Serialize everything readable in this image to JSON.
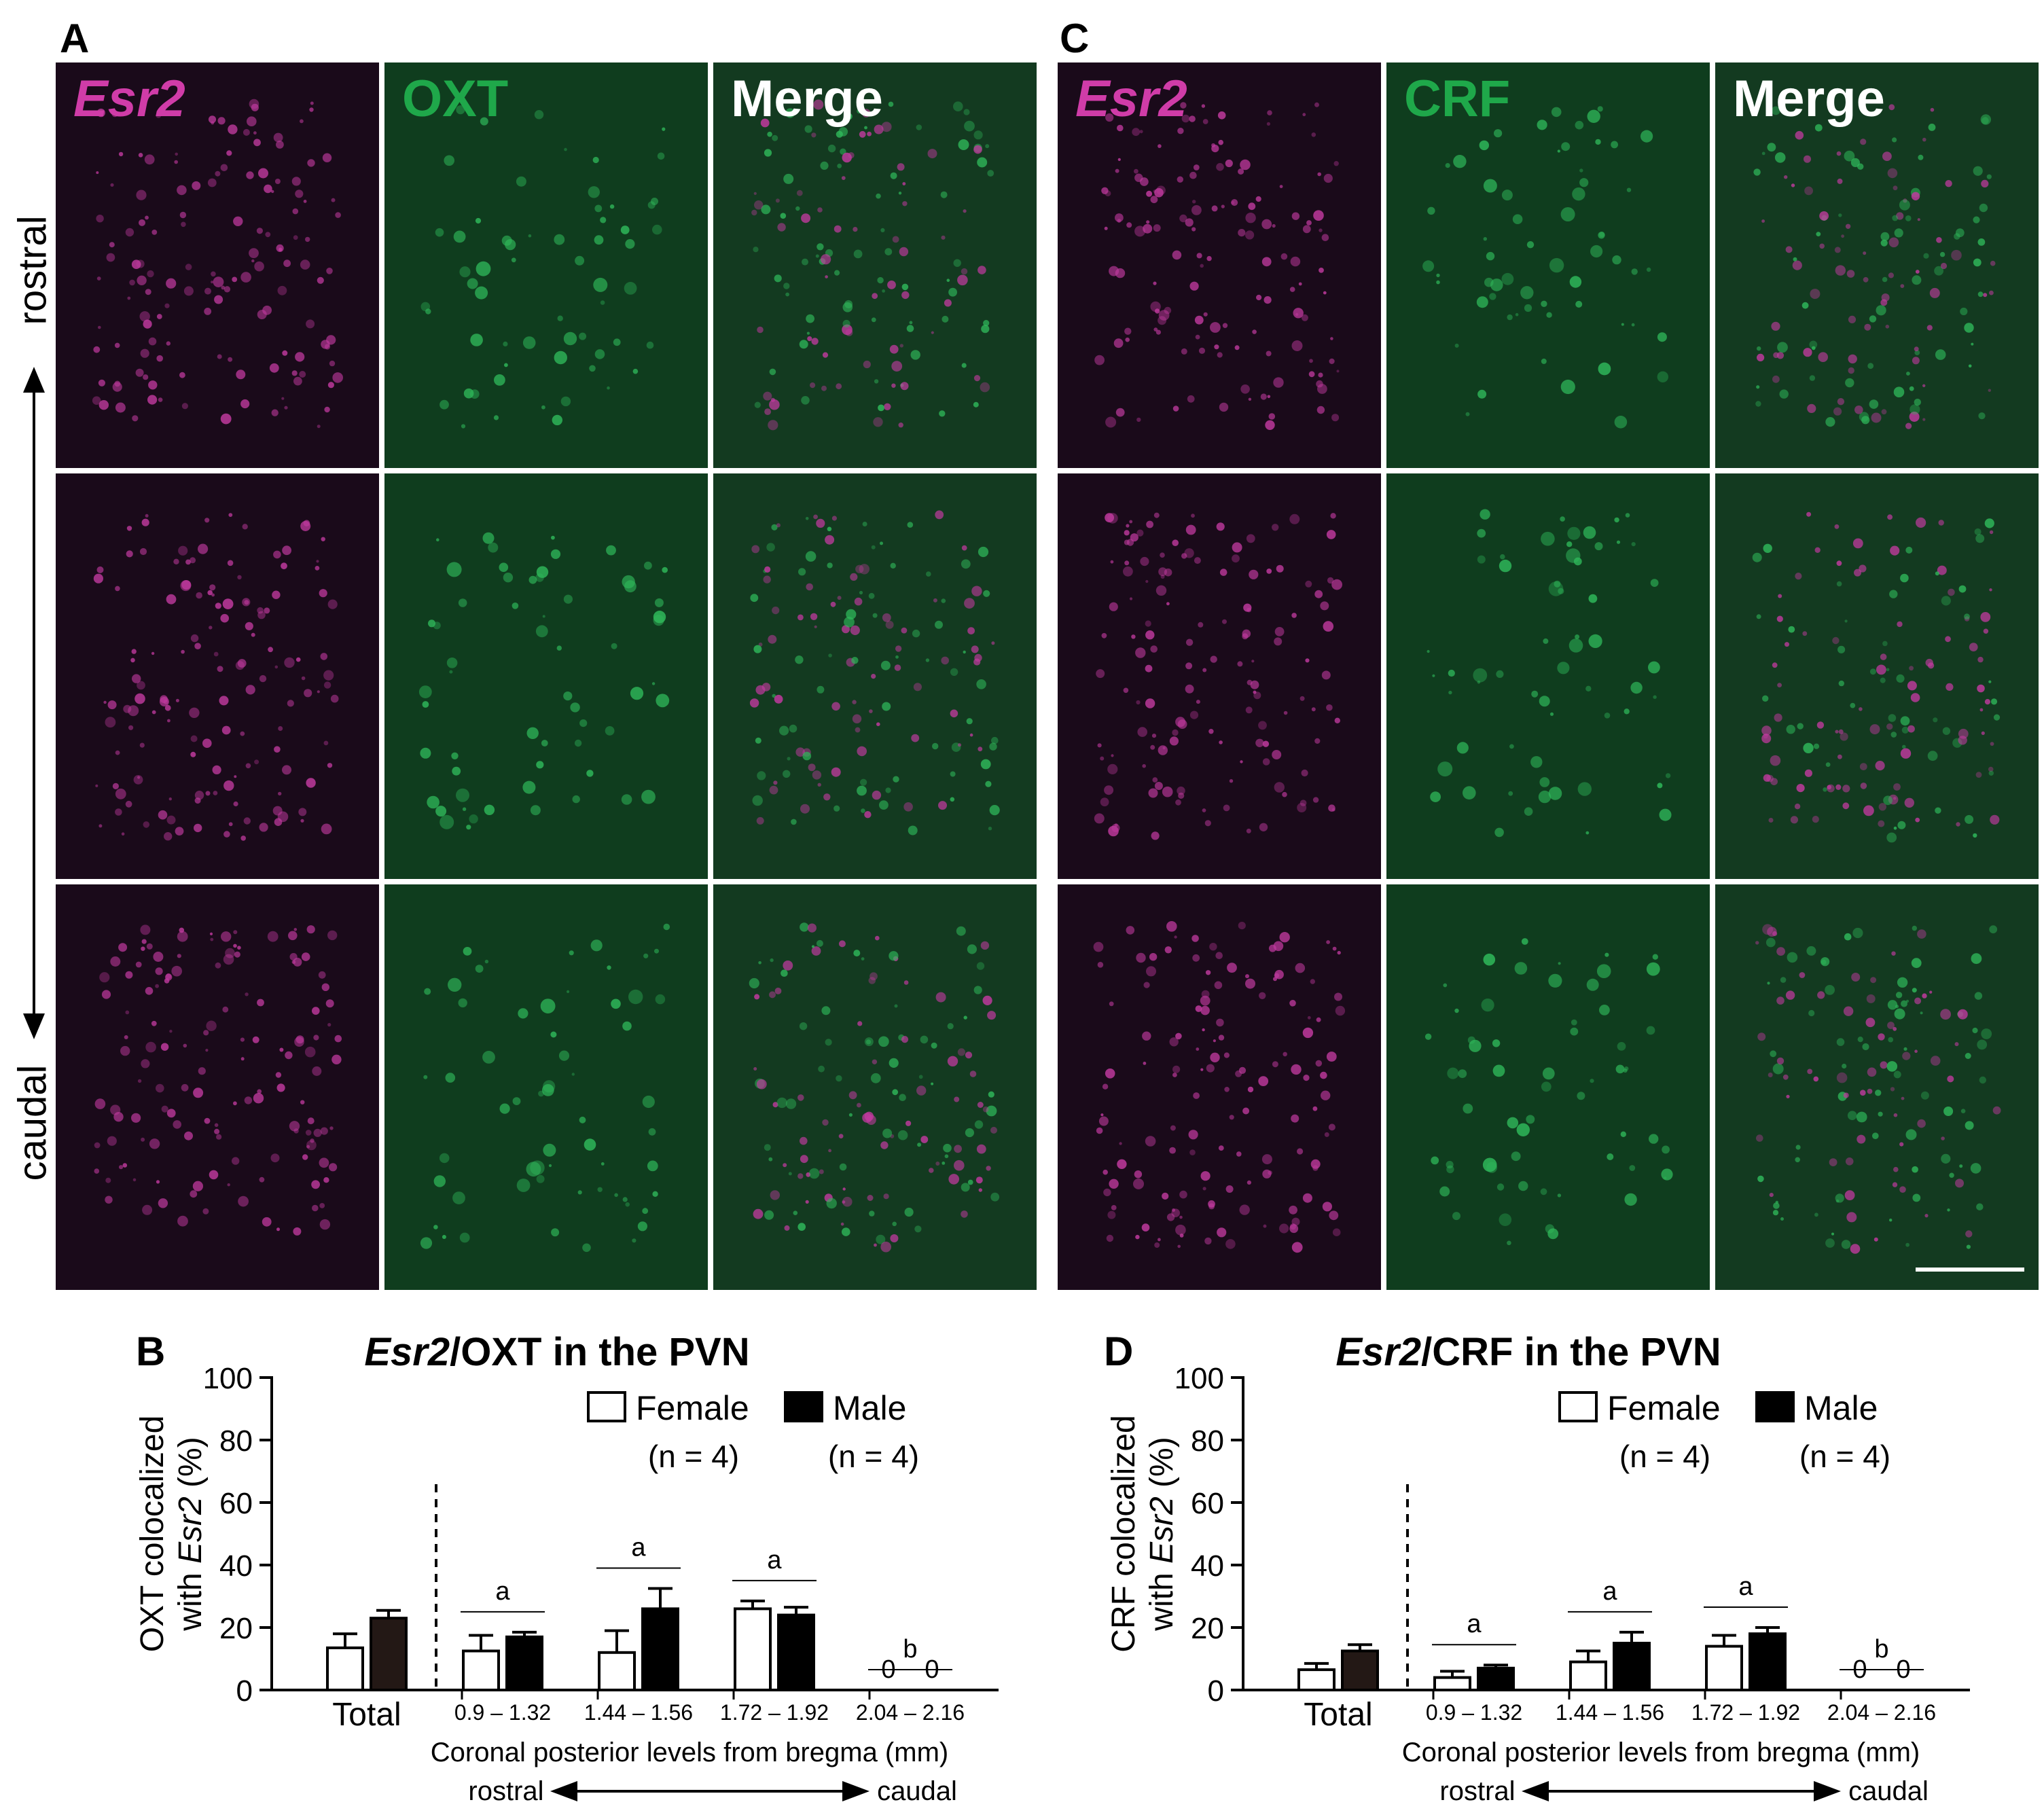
{
  "panels": {
    "A": {
      "letter": "A",
      "col_labels": [
        "Esr2",
        "OXT",
        "Merge"
      ]
    },
    "C": {
      "letter": "C",
      "col_labels": [
        "Esr2",
        "CRF",
        "Merge"
      ]
    },
    "B": {
      "letter": "B"
    },
    "D": {
      "letter": "D"
    }
  },
  "orientation": {
    "top": "rostral",
    "bottom": "caudal"
  },
  "colors": {
    "magenta": "#d03ca8",
    "green": "#1fa84a",
    "merge_label": "#ffffff"
  },
  "chart_data": [
    {
      "type": "bar",
      "panel": "B",
      "title_italic": "Esr2",
      "title_rest": "/OXT in the PVN",
      "ylabel_line1": "OXT colocalized",
      "ylabel_line2_prefix": "with ",
      "ylabel_line2_italic": "Esr2",
      "ylabel_line2_suffix": " (%)",
      "ylim": [
        0,
        100
      ],
      "yticks": [
        "0",
        "20",
        "40",
        "60",
        "80",
        "100"
      ],
      "categories": [
        "Total",
        "0.9 – 1.32",
        "1.44 – 1.56",
        "1.72 – 1.92",
        "2.04 – 2.16"
      ],
      "series": [
        {
          "name": "Female",
          "n": "(n = 4)",
          "values": [
            13.5,
            12.5,
            12,
            26,
            0
          ],
          "errors": [
            4.5,
            5,
            7,
            2.5,
            0
          ]
        },
        {
          "name": "Male",
          "n": "(n = 4)",
          "values": [
            23,
            17,
            26,
            24,
            0
          ],
          "errors": [
            2.5,
            1.5,
            6.5,
            2.5,
            0
          ]
        }
      ],
      "zero_labels": [
        "0",
        "0"
      ],
      "sig_letters": [
        "a",
        "a",
        "a",
        "b"
      ],
      "xlabel": "Coronal posterior levels from bregma (mm)",
      "arrow_left": "rostral",
      "arrow_right": "caudal",
      "legend_position": "top-right"
    },
    {
      "type": "bar",
      "panel": "D",
      "title_italic": "Esr2",
      "title_rest": "/CRF in the PVN",
      "ylabel_line1": "CRF colocalized",
      "ylabel_line2_prefix": "with ",
      "ylabel_line2_italic": "Esr2",
      "ylabel_line2_suffix": " (%)",
      "ylim": [
        0,
        100
      ],
      "yticks": [
        "0",
        "20",
        "40",
        "60",
        "80",
        "100"
      ],
      "categories": [
        "Total",
        "0.9 – 1.32",
        "1.44 – 1.56",
        "1.72 – 1.92",
        "2.04 – 2.16"
      ],
      "series": [
        {
          "name": "Female",
          "n": "(n = 4)",
          "values": [
            6.5,
            4,
            9,
            14,
            0
          ],
          "errors": [
            2,
            2,
            3.5,
            3.5,
            0
          ]
        },
        {
          "name": "Male",
          "n": "(n = 4)",
          "values": [
            12.5,
            7,
            15,
            18,
            0
          ],
          "errors": [
            2,
            1,
            3.5,
            2,
            0
          ]
        }
      ],
      "zero_labels": [
        "0",
        "0"
      ],
      "sig_letters": [
        "a",
        "a",
        "a",
        "b"
      ],
      "xlabel": "Coronal posterior levels from bregma (mm)",
      "arrow_left": "rostral",
      "arrow_right": "caudal",
      "legend_position": "top-right"
    }
  ]
}
